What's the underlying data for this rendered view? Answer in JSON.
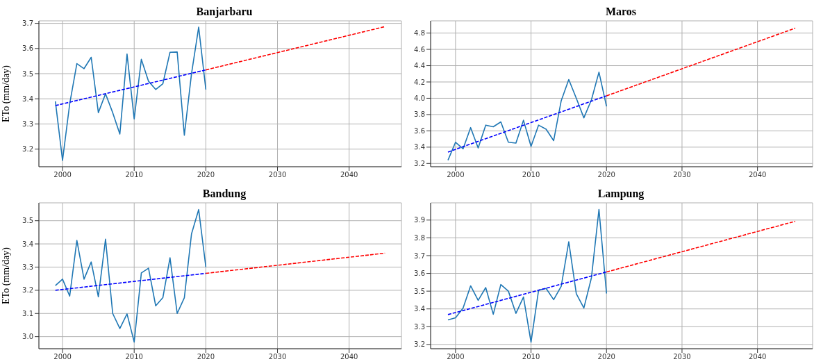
{
  "chart_data": [
    {
      "type": "line",
      "title": "Banjarbaru",
      "ylabel": "ETo (mm/day)",
      "xlim": [
        1996.7,
        2047.3
      ],
      "xticks": [
        2000,
        2010,
        2020,
        2030,
        2040
      ],
      "ylim": [
        3.13,
        3.71
      ],
      "yticks": [
        3.2,
        3.3,
        3.4,
        3.5,
        3.6,
        3.7
      ],
      "grid": true,
      "marker": "none",
      "series": [
        {
          "color": "#1f77b4",
          "line_style": "solid",
          "x": [
            1999,
            2000,
            2001,
            2002,
            2003,
            2004,
            2005,
            2006,
            2007,
            2008,
            2009,
            2010,
            2011,
            2012,
            2013,
            2014,
            2015,
            2016,
            2017,
            2018,
            2019,
            2020
          ],
          "values": [
            3.39,
            3.155,
            3.38,
            3.54,
            3.52,
            3.565,
            3.345,
            3.42,
            3.345,
            3.26,
            3.578,
            3.32,
            3.557,
            3.47,
            3.437,
            3.46,
            3.585,
            3.586,
            3.255,
            3.5,
            3.685,
            3.437
          ]
        },
        {
          "color": "#0000ff",
          "line_style": "dashed",
          "x": [
            1999,
            2020
          ],
          "values": [
            3.373,
            3.515
          ]
        },
        {
          "color": "#ff0000",
          "line_style": "dashed",
          "x": [
            2020,
            2045
          ],
          "values": [
            3.515,
            3.687
          ]
        }
      ]
    },
    {
      "type": "line",
      "title": "Maros",
      "xlim": [
        1996.7,
        2047.3
      ],
      "xticks": [
        2000,
        2010,
        2020,
        2030,
        2040
      ],
      "ylim": [
        3.16,
        4.95
      ],
      "yticks": [
        3.2,
        3.4,
        3.6,
        3.8,
        {
          "value": 4,
          "label": "4.0"
        },
        4.2,
        4.4,
        4.6,
        4.8
      ],
      "grid": true,
      "marker": "none",
      "series": [
        {
          "color": "#1f77b4",
          "line_style": "solid",
          "x": [
            1999,
            2000,
            2001,
            2002,
            2003,
            2004,
            2005,
            2006,
            2007,
            2008,
            2009,
            2010,
            2011,
            2012,
            2013,
            2014,
            2015,
            2016,
            2017,
            2018,
            2019,
            2020
          ],
          "values": [
            3.24,
            3.46,
            3.38,
            3.64,
            3.39,
            3.67,
            3.65,
            3.71,
            3.46,
            3.45,
            3.73,
            3.41,
            3.67,
            3.62,
            3.48,
            3.97,
            4.23,
            4.0,
            3.76,
            3.98,
            4.32,
            3.9
          ]
        },
        {
          "color": "#0000ff",
          "line_style": "dashed",
          "x": [
            1999,
            2020
          ],
          "values": [
            3.34,
            4.03
          ]
        },
        {
          "color": "#ff0000",
          "line_style": "dashed",
          "x": [
            2020,
            2045
          ],
          "values": [
            4.03,
            4.86
          ]
        }
      ]
    },
    {
      "type": "line",
      "title": "Bandung",
      "ylabel": "ETo (mm/day)",
      "xlim": [
        1996.7,
        2047.3
      ],
      "xticks": [
        2000,
        2010,
        2020,
        2030,
        2040
      ],
      "ylim": [
        2.948,
        3.577
      ],
      "yticks": [
        {
          "value": 3,
          "label": "3.0"
        },
        3.1,
        3.2,
        3.3,
        3.4,
        3.5
      ],
      "grid": true,
      "marker": "none",
      "series": [
        {
          "color": "#1f77b4",
          "line_style": "solid",
          "x": [
            1999,
            2000,
            2001,
            2002,
            2003,
            2004,
            2005,
            2006,
            2007,
            2008,
            2009,
            2010,
            2011,
            2012,
            2013,
            2014,
            2015,
            2016,
            2017,
            2018,
            2019,
            2020
          ],
          "values": [
            3.22,
            3.248,
            3.175,
            3.415,
            3.248,
            3.322,
            3.172,
            3.42,
            3.1,
            3.035,
            3.098,
            2.977,
            3.275,
            3.295,
            3.133,
            3.168,
            3.34,
            3.1,
            3.168,
            3.443,
            3.548,
            3.3
          ]
        },
        {
          "color": "#0000ff",
          "line_style": "dashed",
          "x": [
            1999,
            2020
          ],
          "values": [
            3.2,
            3.273
          ]
        },
        {
          "color": "#ff0000",
          "line_style": "dashed",
          "x": [
            2020,
            2045
          ],
          "values": [
            3.273,
            3.36
          ]
        }
      ]
    },
    {
      "type": "line",
      "title": "Lampung",
      "xlim": [
        1996.7,
        2047.3
      ],
      "xticks": [
        2000,
        2010,
        2020,
        2030,
        2040
      ],
      "ylim": [
        3.176,
        3.997
      ],
      "yticks": [
        3.2,
        3.3,
        3.4,
        3.5,
        3.6,
        3.7,
        3.8,
        3.9
      ],
      "grid": true,
      "marker": "none",
      "series": [
        {
          "color": "#1f77b4",
          "line_style": "solid",
          "x": [
            1999,
            2000,
            2001,
            2002,
            2003,
            2004,
            2005,
            2006,
            2007,
            2008,
            2009,
            2010,
            2011,
            2012,
            2013,
            2014,
            2015,
            2016,
            2017,
            2018,
            2019,
            2020
          ],
          "values": [
            3.338,
            3.35,
            3.405,
            3.53,
            3.448,
            3.52,
            3.37,
            3.537,
            3.5,
            3.375,
            3.467,
            3.213,
            3.505,
            3.515,
            3.452,
            3.527,
            3.778,
            3.485,
            3.405,
            3.575,
            3.96,
            3.487
          ]
        },
        {
          "color": "#0000ff",
          "line_style": "dashed",
          "x": [
            1999,
            2020
          ],
          "values": [
            3.368,
            3.608
          ]
        },
        {
          "color": "#ff0000",
          "line_style": "dashed",
          "x": [
            2020,
            2045
          ],
          "values": [
            3.608,
            3.893
          ]
        }
      ]
    }
  ]
}
